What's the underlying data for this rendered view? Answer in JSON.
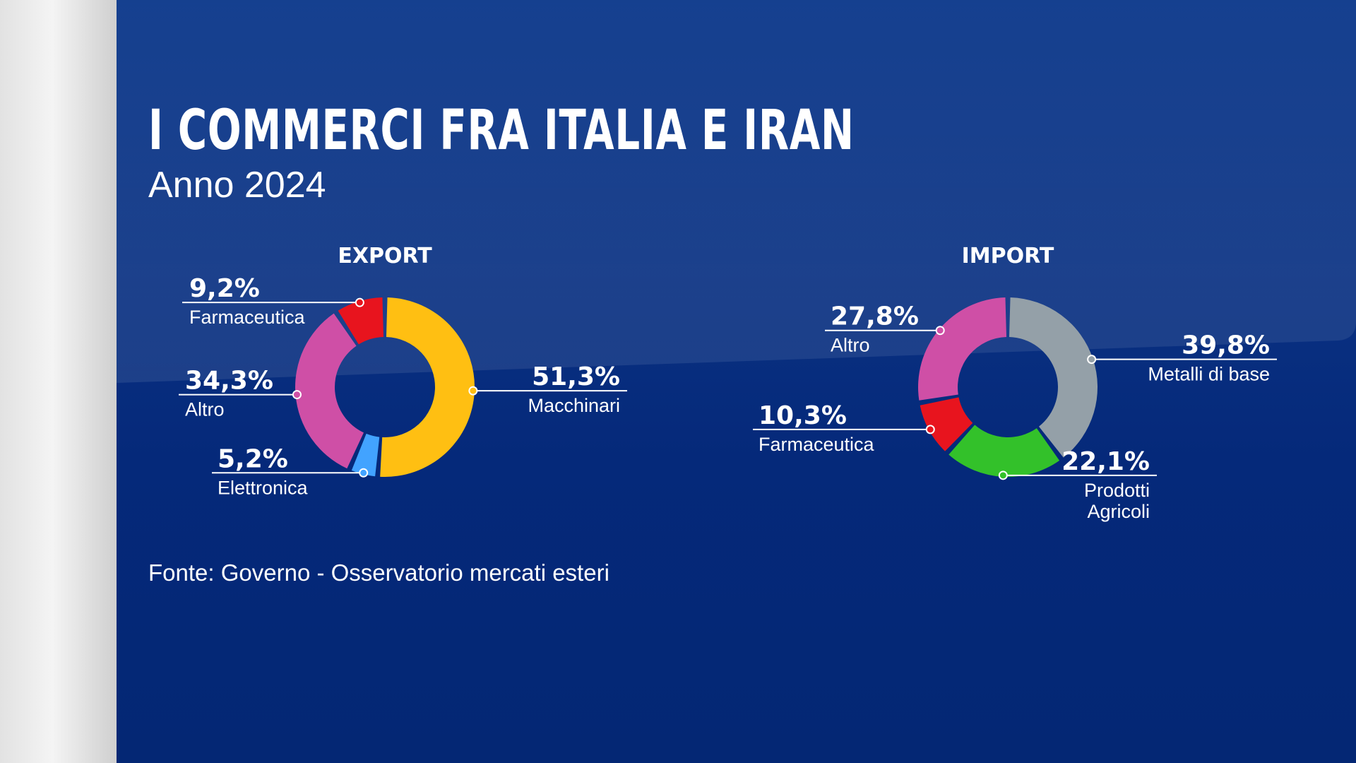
{
  "title": "I COMMERCI FRA ITALIA E IRAN",
  "subtitle": "Anno 2024",
  "source": "Fonte: Governo - Osservatorio mercati esteri",
  "chart_data": [
    {
      "type": "pie",
      "title": "EXPORT",
      "slices": [
        {
          "label": "Macchinari",
          "value": 51.3,
          "value_label": "51,3%",
          "color": "#ffbf12"
        },
        {
          "label": "Elettronica",
          "value": 5.2,
          "value_label": "5,2%",
          "color": "#42a3ff"
        },
        {
          "label": "Altro",
          "value": 34.3,
          "value_label": "34,3%",
          "color": "#cf4fa6"
        },
        {
          "label": "Farmaceutica",
          "value": 9.2,
          "value_label": "9,2%",
          "color": "#e8141e"
        }
      ]
    },
    {
      "type": "pie",
      "title": "IMPORT",
      "slices": [
        {
          "label": "Metalli di base",
          "value": 39.8,
          "value_label": "39,8%",
          "color": "#94a0a8"
        },
        {
          "label": "Prodotti Agricoli",
          "value": 22.1,
          "value_label": "22,1%",
          "color": "#33c12a"
        },
        {
          "label": "Farmaceutica",
          "value": 10.3,
          "value_label": "10,3%",
          "color": "#e8141e"
        },
        {
          "label": "Altro",
          "value": 27.8,
          "value_label": "27,8%",
          "color": "#cf4fa6"
        }
      ]
    }
  ]
}
